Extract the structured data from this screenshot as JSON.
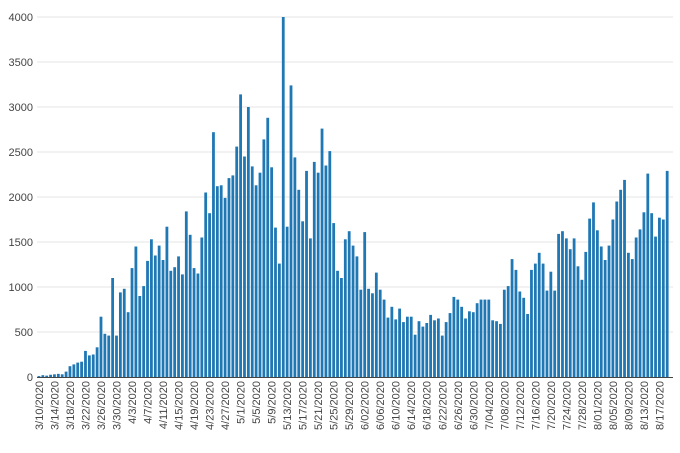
{
  "chart_data": {
    "type": "bar",
    "title": "",
    "xlabel": "",
    "ylabel": "",
    "ylim": [
      0,
      4000
    ],
    "yticks": [
      0,
      500,
      1000,
      1500,
      2000,
      2500,
      3000,
      3500,
      4000
    ],
    "grid": true,
    "legend": "none",
    "bar_color": "#1f77b4",
    "start_date": "3/10/2020",
    "dates": [
      "3/10/2020",
      "3/11/2020",
      "3/12/2020",
      "3/13/2020",
      "3/14/2020",
      "3/15/2020",
      "3/16/2020",
      "3/17/2020",
      "3/18/2020",
      "3/19/2020",
      "3/20/2020",
      "3/21/2020",
      "3/22/2020",
      "3/23/2020",
      "3/24/2020",
      "3/25/2020",
      "3/26/2020",
      "3/27/2020",
      "3/28/2020",
      "3/29/2020",
      "3/30/2020",
      "3/31/2020",
      "4/1/2020",
      "4/2/2020",
      "4/3/2020",
      "4/4/2020",
      "4/5/2020",
      "4/6/2020",
      "4/7/2020",
      "4/8/2020",
      "4/9/2020",
      "4/10/2020",
      "4/11/2020",
      "4/12/2020",
      "4/13/2020",
      "4/14/2020",
      "4/15/2020",
      "4/16/2020",
      "4/17/2020",
      "4/18/2020",
      "4/19/2020",
      "4/20/2020",
      "4/21/2020",
      "4/22/2020",
      "4/23/2020",
      "4/24/2020",
      "4/25/2020",
      "4/26/2020",
      "4/27/2020",
      "4/28/2020",
      "4/29/2020",
      "4/30/2020",
      "5/1/2020",
      "5/2/2020",
      "5/3/2020",
      "5/4/2020",
      "5/5/2020",
      "5/6/2020",
      "5/7/2020",
      "5/8/2020",
      "5/9/2020",
      "5/10/2020",
      "5/11/2020",
      "5/12/2020",
      "5/13/2020",
      "5/14/2020",
      "5/15/2020",
      "5/16/2020",
      "5/17/2020",
      "5/18/2020",
      "5/19/2020",
      "5/20/2020",
      "5/21/2020",
      "5/22/2020",
      "5/23/2020",
      "5/24/2020",
      "5/25/2020",
      "5/26/2020",
      "5/27/2020",
      "5/28/2020",
      "5/29/2020",
      "5/30/2020",
      "5/31/2020",
      "6/1/2020",
      "6/2/2020",
      "6/3/2020",
      "6/4/2020",
      "6/5/2020",
      "6/6/2020",
      "6/7/2020",
      "6/8/2020",
      "6/9/2020",
      "6/10/2020",
      "6/11/2020",
      "6/12/2020",
      "6/13/2020",
      "6/14/2020",
      "6/15/2020",
      "6/16/2020",
      "6/17/2020",
      "6/18/2020",
      "6/19/2020",
      "6/20/2020",
      "6/21/2020",
      "6/22/2020",
      "6/23/2020",
      "6/24/2020",
      "6/25/2020",
      "6/26/2020",
      "6/27/2020",
      "6/28/2020",
      "6/29/2020",
      "6/30/2020",
      "7/1/2020",
      "7/2/2020",
      "7/3/2020",
      "7/4/2020",
      "7/5/2020",
      "7/6/2020",
      "7/7/2020",
      "7/8/2020",
      "7/9/2020",
      "7/10/2020",
      "7/11/2020",
      "7/12/2020",
      "7/13/2020",
      "7/14/2020",
      "7/15/2020",
      "7/16/2020",
      "7/17/2020",
      "7/18/2020",
      "7/19/2020",
      "7/20/2020",
      "7/21/2020",
      "7/22/2020",
      "7/23/2020",
      "7/24/2020",
      "7/25/2020",
      "7/26/2020",
      "7/27/2020",
      "7/28/2020",
      "7/29/2020",
      "7/30/2020",
      "7/31/2020",
      "8/1/2020",
      "8/2/2020",
      "8/3/2020",
      "8/4/2020",
      "8/5/2020",
      "8/6/2020",
      "8/7/2020",
      "8/8/2020",
      "8/9/2020",
      "8/10/2020",
      "8/11/2020",
      "8/12/2020",
      "8/13/2020",
      "8/14/2020",
      "8/15/2020",
      "8/16/2020",
      "8/17/2020",
      "8/18/2020",
      "8/19/2020",
      "8/20/2020"
    ],
    "values": [
      10,
      20,
      15,
      25,
      30,
      35,
      30,
      60,
      120,
      140,
      160,
      170,
      290,
      240,
      250,
      330,
      670,
      480,
      460,
      1100,
      460,
      940,
      980,
      720,
      1210,
      1450,
      900,
      1010,
      1290,
      1530,
      1350,
      1460,
      1300,
      1670,
      1180,
      1220,
      1340,
      1140,
      1840,
      1580,
      1210,
      1150,
      1550,
      2050,
      1820,
      2720,
      2120,
      2130,
      1990,
      2210,
      2240,
      2560,
      3140,
      2450,
      3000,
      2340,
      2130,
      2270,
      2640,
      2880,
      2330,
      1660,
      1260,
      4000,
      1670,
      3240,
      2440,
      2080,
      1730,
      2290,
      1540,
      2390,
      2270,
      2760,
      2350,
      2510,
      1710,
      1180,
      1100,
      1530,
      1620,
      1460,
      1340,
      970,
      1610,
      980,
      930,
      1160,
      970,
      860,
      660,
      780,
      640,
      760,
      610,
      670,
      670,
      470,
      620,
      560,
      600,
      690,
      630,
      650,
      460,
      610,
      710,
      890,
      860,
      780,
      650,
      730,
      720,
      820,
      860,
      860,
      860,
      630,
      620,
      590,
      970,
      1010,
      1310,
      1190,
      950,
      880,
      700,
      1190,
      1260,
      1380,
      1260,
      960,
      1170,
      960,
      1590,
      1620,
      1540,
      1420,
      1540,
      1230,
      1080,
      1390,
      1760,
      1940,
      1630,
      1450,
      1300,
      1460,
      1750,
      1950,
      2080,
      2190,
      1380,
      1310,
      1550,
      1640,
      1830,
      2260,
      1820,
      1560,
      1770,
      1750,
      2290,
      0
    ],
    "x_tick_labels": [
      "3/10/2020",
      "3/14/2020",
      "3/18/2020",
      "3/22/2020",
      "3/26/2020",
      "3/30/2020",
      "4/3/2020",
      "4/7/2020",
      "4/11/2020",
      "4/15/2020",
      "4/19/2020",
      "4/23/2020",
      "4/27/2020",
      "5/1/2020",
      "5/5/2020",
      "5/9/2020",
      "5/13/2020",
      "5/17/2020",
      "5/21/2020",
      "5/25/2020",
      "5/29/2020",
      "6/02/2020",
      "6/06/2020",
      "6/10/2020",
      "6/14/2020",
      "6/18/2020",
      "6/22/2020",
      "6/26/2020",
      "6/30/2020",
      "7/04/2020",
      "7/08/2020",
      "7/12/2020",
      "7/16/2020",
      "7/20/2020",
      "7/24/2020",
      "7/28/2020",
      "8/01/2020",
      "8/05/2020",
      "8/09/2020",
      "8/13/2020",
      "8/17/2020"
    ]
  }
}
